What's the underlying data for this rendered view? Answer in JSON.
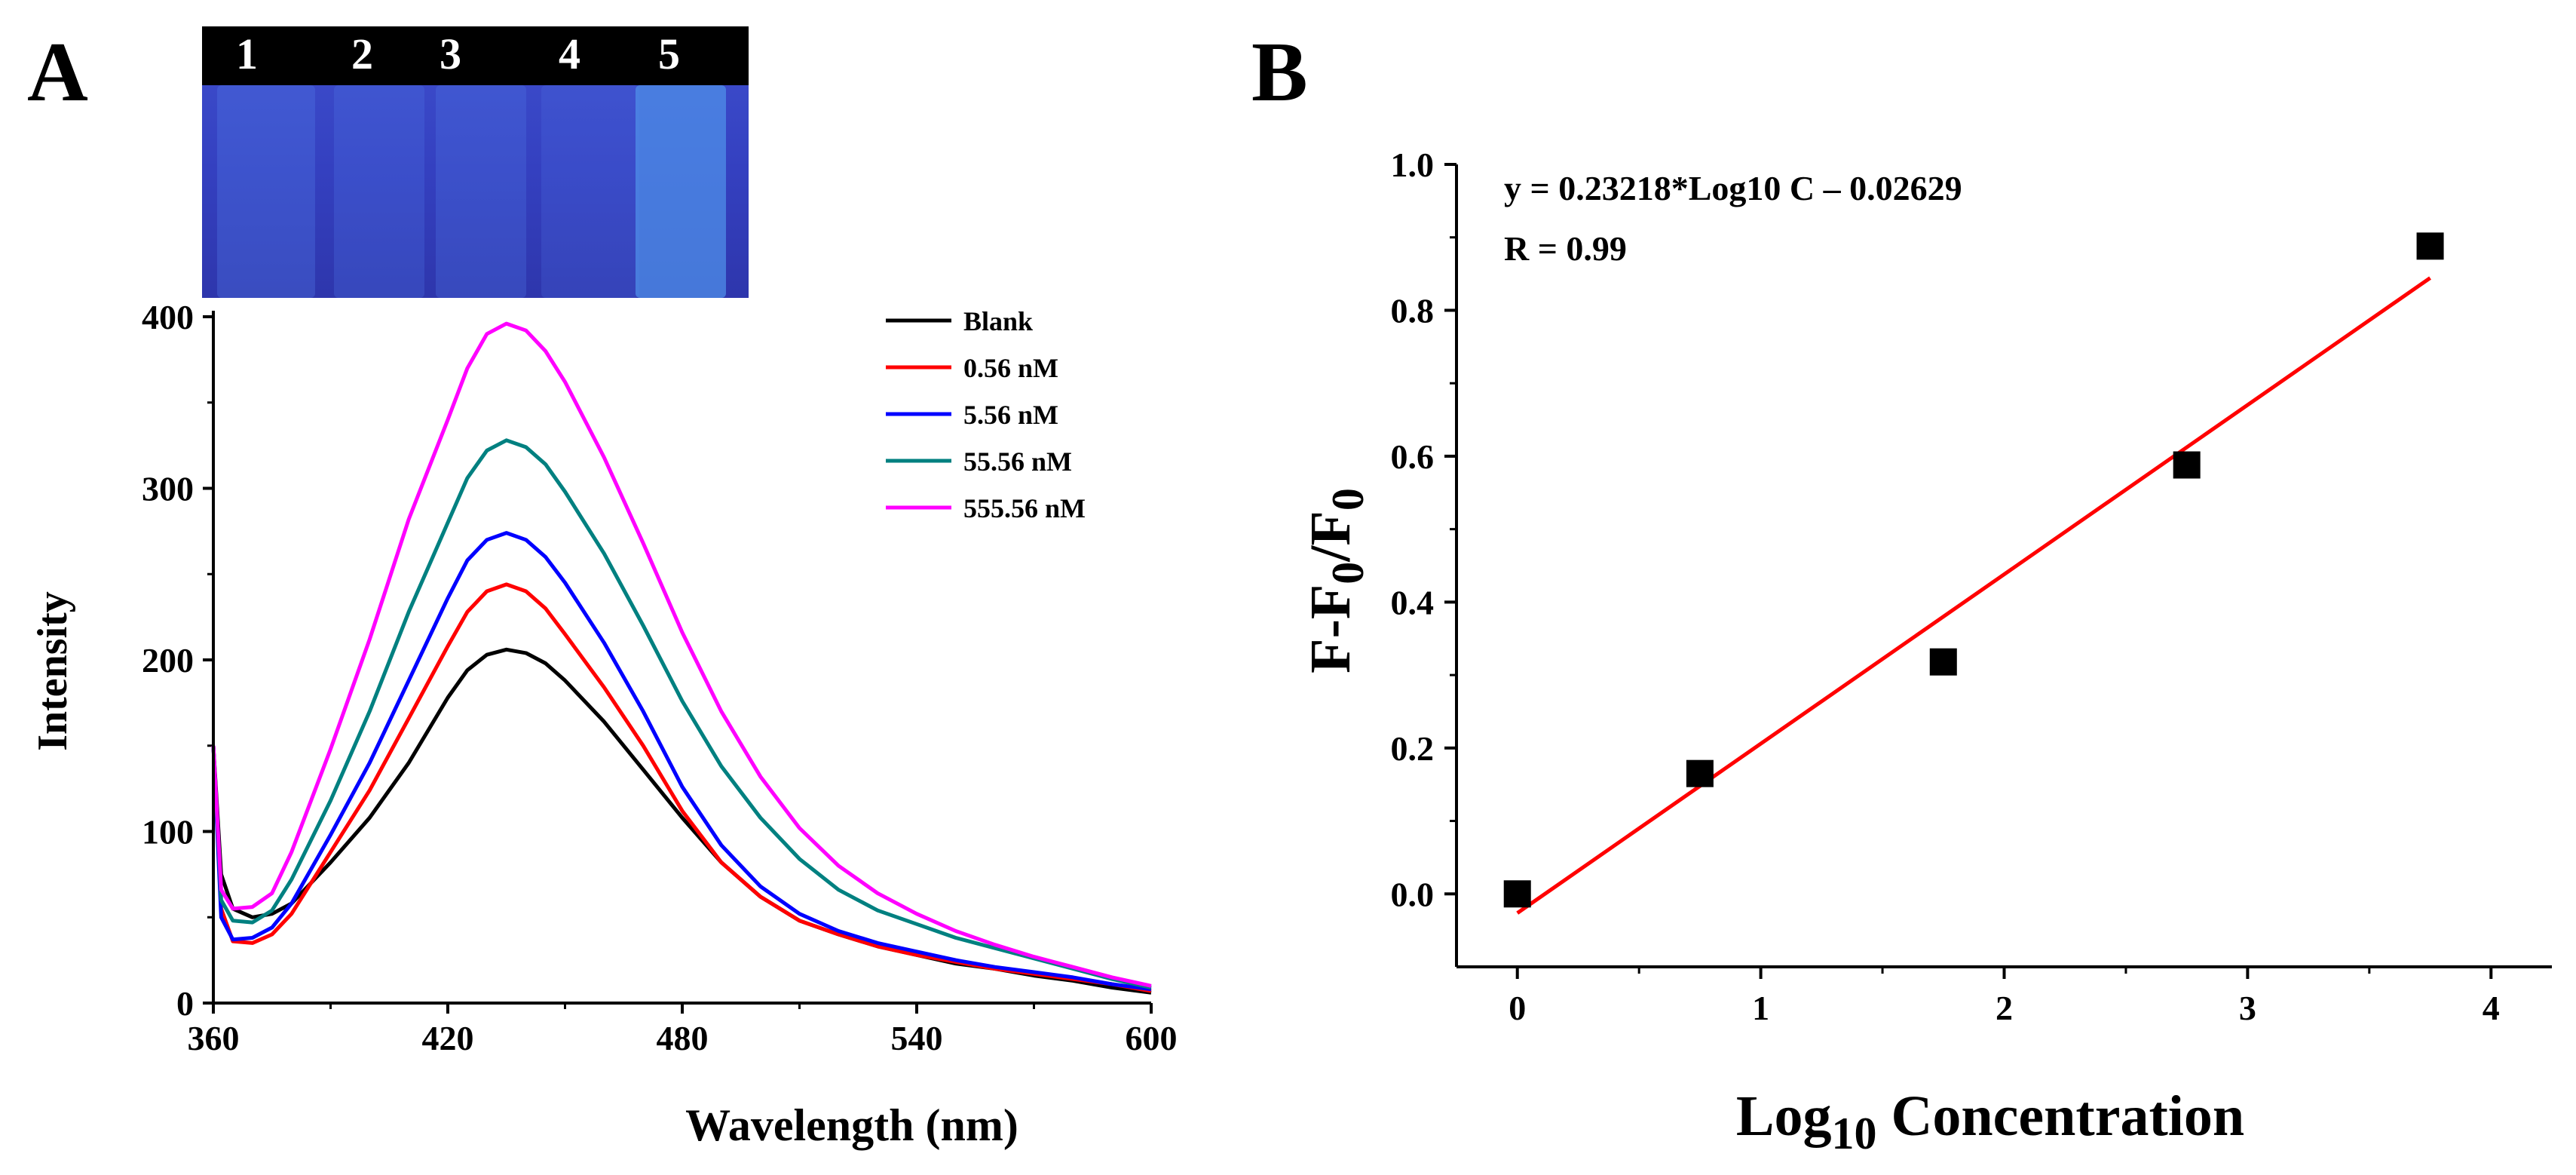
{
  "panels": {
    "a_label": "A",
    "b_label": "B"
  },
  "photo": {
    "vial_numbers": [
      "1",
      "2",
      "3",
      "4",
      "5"
    ],
    "colors": {
      "bar": "#000000",
      "tube_glow": "#4f8fe8",
      "background": "#3440c0"
    }
  },
  "chart_data": [
    {
      "type": "line",
      "xlabel": "Wavelength (nm)",
      "ylabel": "Intensity",
      "xlim": [
        360,
        600
      ],
      "ylim": [
        0,
        400
      ],
      "xticks": [
        360,
        420,
        480,
        540,
        600
      ],
      "yticks": [
        0,
        100,
        200,
        300,
        400
      ],
      "legend_position": "top-right",
      "x": [
        360,
        362,
        365,
        370,
        375,
        380,
        390,
        400,
        410,
        420,
        425,
        430,
        435,
        440,
        445,
        450,
        460,
        470,
        480,
        490,
        500,
        510,
        520,
        530,
        540,
        550,
        560,
        570,
        580,
        590,
        600
      ],
      "series": [
        {
          "name": "Blank",
          "color": "#000000",
          "values": [
            150,
            75,
            55,
            50,
            52,
            58,
            82,
            108,
            140,
            178,
            194,
            203,
            206,
            204,
            198,
            188,
            164,
            136,
            108,
            82,
            62,
            48,
            40,
            33,
            28,
            23,
            20,
            16,
            13,
            9,
            6
          ]
        },
        {
          "name": "0.56 nM",
          "color": "#ff0000",
          "values": [
            150,
            55,
            36,
            35,
            40,
            52,
            88,
            124,
            166,
            208,
            228,
            240,
            244,
            240,
            230,
            215,
            184,
            150,
            112,
            82,
            62,
            48,
            40,
            33,
            28,
            24,
            20,
            17,
            14,
            11,
            7
          ]
        },
        {
          "name": "5.56 nM",
          "color": "#0000ff",
          "values": [
            150,
            50,
            37,
            38,
            44,
            58,
            98,
            140,
            188,
            236,
            258,
            270,
            274,
            270,
            260,
            245,
            210,
            170,
            126,
            92,
            68,
            52,
            42,
            35,
            30,
            25,
            21,
            18,
            15,
            11,
            8
          ]
        },
        {
          "name": "55.56 nM",
          "color": "#008080",
          "values": [
            150,
            60,
            48,
            47,
            54,
            72,
            118,
            170,
            228,
            280,
            306,
            322,
            328,
            324,
            314,
            298,
            262,
            220,
            176,
            138,
            108,
            84,
            66,
            54,
            46,
            38,
            32,
            26,
            20,
            14,
            9
          ]
        },
        {
          "name": "555.56 nM",
          "color": "#ff00ff",
          "values": [
            150,
            66,
            55,
            56,
            64,
            88,
            148,
            212,
            282,
            340,
            370,
            390,
            396,
            392,
            380,
            362,
            318,
            268,
            216,
            170,
            132,
            102,
            80,
            64,
            52,
            42,
            34,
            27,
            21,
            15,
            10
          ]
        }
      ]
    },
    {
      "type": "scatter",
      "xlabel_main": "Log",
      "xlabel_sub": "10",
      "xlabel_rest": " Concentration",
      "ylabel_a": "F-F",
      "ylabel_sub": "0",
      "ylabel_b": "/F",
      "ylabel_sub2": "0",
      "xlim": [
        -0.25,
        4.25
      ],
      "ylim": [
        -0.1,
        1.0
      ],
      "xticks": [
        0,
        1,
        2,
        3,
        4
      ],
      "yticks": [
        0.0,
        0.2,
        0.4,
        0.6,
        0.8,
        1.0
      ],
      "xtick_labels": [
        "0",
        "1",
        "2",
        "3",
        "4"
      ],
      "ytick_labels": [
        "0.0",
        "0.2",
        "0.4",
        "0.6",
        "0.8",
        "1.0"
      ],
      "x": [
        0,
        0.75,
        1.75,
        2.75,
        3.75
      ],
      "y": [
        0.0,
        0.165,
        0.318,
        0.588,
        0.888
      ],
      "marker_color": "#000000",
      "fit": {
        "slope": 0.23218,
        "intercept": -0.02629,
        "x_range": [
          0,
          3.75
        ],
        "color": "#ff0000"
      },
      "equation_text": "y = 0.23218*Log10 C – 0.02629",
      "r_text": "R = 0.99"
    }
  ]
}
